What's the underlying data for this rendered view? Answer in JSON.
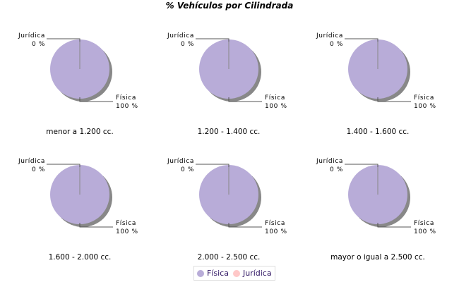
{
  "title": "% Vehículos por Cilindrada",
  "colors": {
    "Física": "#b8acd8",
    "Jurídica": "#ffc8c8"
  },
  "legend": [
    {
      "label": "Física",
      "color": "#b8acd8"
    },
    {
      "label": "Jurídica",
      "color": "#ffc8c8"
    }
  ],
  "chart_data": [
    {
      "type": "pie",
      "title": "menor a 1.200 cc.",
      "labels": [
        "Jurídica",
        "Física"
      ],
      "values": [
        0,
        100
      ],
      "value_labels": [
        "0 %",
        "100 %"
      ]
    },
    {
      "type": "pie",
      "title": "1.200 - 1.400 cc.",
      "labels": [
        "Jurídica",
        "Física"
      ],
      "values": [
        0,
        100
      ],
      "value_labels": [
        "0 %",
        "100 %"
      ]
    },
    {
      "type": "pie",
      "title": "1.400 - 1.600 cc.",
      "labels": [
        "Jurídica",
        "Física"
      ],
      "values": [
        0,
        100
      ],
      "value_labels": [
        "0 %",
        "100 %"
      ]
    },
    {
      "type": "pie",
      "title": "1.600 - 2.000 cc.",
      "labels": [
        "Jurídica",
        "Física"
      ],
      "values": [
        0,
        100
      ],
      "value_labels": [
        "0 %",
        "100 %"
      ]
    },
    {
      "type": "pie",
      "title": "2.000 - 2.500 cc.",
      "labels": [
        "Jurídica",
        "Física"
      ],
      "values": [
        0,
        100
      ],
      "value_labels": [
        "0 %",
        "100 %"
      ]
    },
    {
      "type": "pie",
      "title": "mayor o igual a 2.500 cc.",
      "labels": [
        "Jurídica",
        "Física"
      ],
      "values": [
        0,
        100
      ],
      "value_labels": [
        "0 %",
        "100 %"
      ]
    }
  ]
}
